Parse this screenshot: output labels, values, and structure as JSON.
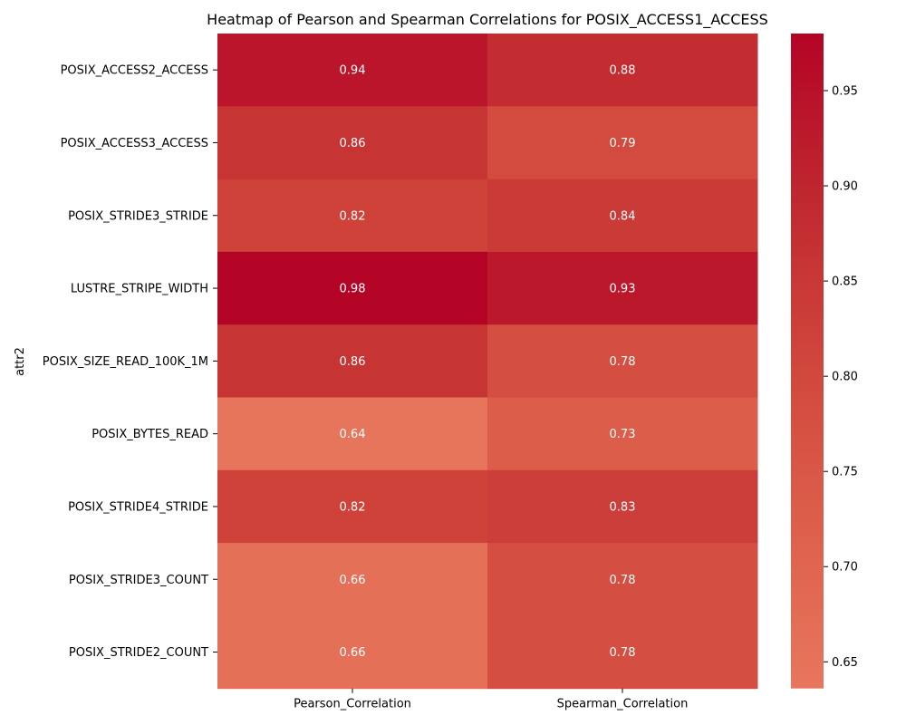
{
  "chart_data": {
    "type": "heatmap",
    "title": "Heatmap of Pearson and Spearman Correlations for POSIX_ACCESS1_ACCESS",
    "ylabel": "attr2",
    "xlabel": "",
    "rows": [
      "POSIX_ACCESS2_ACCESS",
      "POSIX_ACCESS3_ACCESS",
      "POSIX_STRIDE3_STRIDE",
      "LUSTRE_STRIPE_WIDTH",
      "POSIX_SIZE_READ_100K_1M",
      "POSIX_BYTES_READ",
      "POSIX_STRIDE4_STRIDE",
      "POSIX_STRIDE3_COUNT",
      "POSIX_STRIDE2_COUNT"
    ],
    "columns": [
      "Pearson_Correlation",
      "Spearman_Correlation"
    ],
    "values": [
      [
        0.94,
        0.88
      ],
      [
        0.86,
        0.79
      ],
      [
        0.82,
        0.84
      ],
      [
        0.98,
        0.93
      ],
      [
        0.86,
        0.78
      ],
      [
        0.64,
        0.73
      ],
      [
        0.82,
        0.83
      ],
      [
        0.66,
        0.78
      ],
      [
        0.66,
        0.78
      ]
    ],
    "colorbar": {
      "range": [
        0.636,
        0.98
      ],
      "ticks": [
        0.65,
        0.7,
        0.75,
        0.8,
        0.85,
        0.9,
        0.95
      ],
      "tick_labels": [
        "0.65",
        "0.70",
        "0.75",
        "0.80",
        "0.85",
        "0.90",
        "0.95"
      ],
      "colormap": "coolwarm (upper half)",
      "color_low": "#e8765d",
      "color_high": "#b40426"
    },
    "annotations_color": "#ffffff",
    "grid": false
  }
}
